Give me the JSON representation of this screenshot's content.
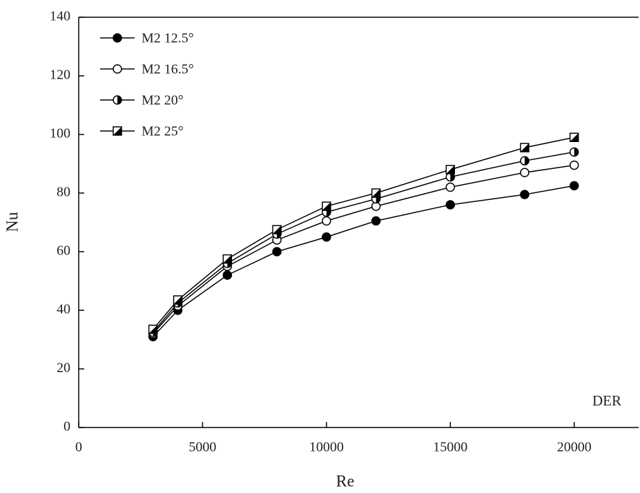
{
  "chart_data": {
    "type": "line",
    "x_label": "Re",
    "y_label": "Nu",
    "annotation": "DER",
    "x": [
      3000,
      4000,
      6000,
      8000,
      10000,
      12000,
      15000,
      18000,
      20000
    ],
    "series": [
      {
        "name": "M2 12.5°",
        "color": "#000000",
        "values": [
          31,
          40,
          52,
          60,
          65,
          70.5,
          76,
          79.5,
          82.5
        ]
      },
      {
        "name": "M2 16.5°",
        "color": "#000000",
        "values": [
          32,
          41.5,
          55,
          64,
          70.5,
          75.5,
          82,
          87,
          89.5
        ]
      },
      {
        "name": "M2 20°",
        "color": "#000000",
        "values": [
          32.5,
          42.5,
          56,
          66,
          73.5,
          78,
          85.5,
          91,
          94
        ]
      },
      {
        "name": "M2 25°",
        "color": "#000000",
        "values": [
          33.5,
          43.5,
          57.5,
          67.5,
          75.5,
          80,
          88,
          95.5,
          99
        ]
      }
    ],
    "xlim": [
      0,
      22600
    ],
    "xticks": [
      0,
      5000,
      10000,
      15000,
      20000
    ],
    "ylim": [
      0,
      140
    ],
    "yticks": [
      0,
      20,
      40,
      60,
      80,
      100,
      120,
      140
    ],
    "legend": "upper left"
  }
}
